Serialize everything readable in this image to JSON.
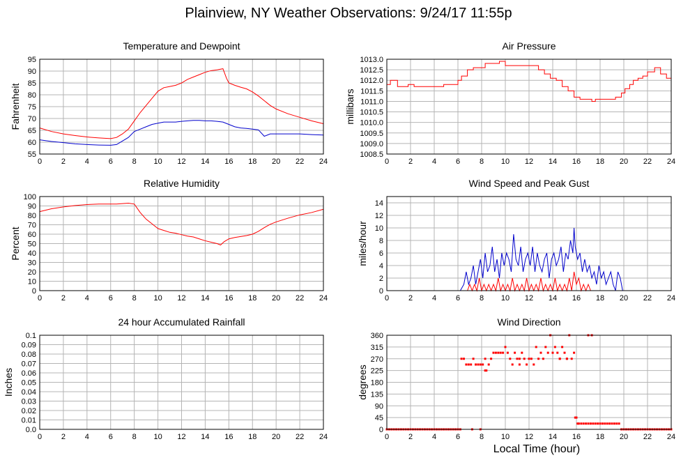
{
  "page": {
    "title": "Plainview, NY Weather Observations: 9/24/17 11:55p",
    "x_axis_label": "Local Time (hour)"
  },
  "colors": {
    "red": "#ff0000",
    "blue": "#0000cc",
    "grid": "#b4b4b4"
  },
  "chart_data": [
    {
      "id": "temp",
      "type": "line",
      "title": "Temperature and Dewpoint",
      "ylabel": "Fahrenheit",
      "xlim": [
        0,
        24
      ],
      "ylim": [
        55,
        95
      ],
      "yticks": [
        "55",
        "60",
        "65",
        "70",
        "75",
        "80",
        "85",
        "90",
        "95"
      ],
      "xticks": [
        "0",
        "2",
        "4",
        "6",
        "8",
        "10",
        "12",
        "14",
        "16",
        "18",
        "20",
        "22",
        "24"
      ],
      "grid": true,
      "series": [
        {
          "color": "red",
          "x": [
            0,
            1,
            2,
            3,
            4,
            5,
            6,
            6.5,
            7,
            7.5,
            8,
            8.5,
            9,
            9.5,
            10,
            10.5,
            11,
            11.5,
            12,
            12.5,
            13,
            13.5,
            14,
            14.5,
            15,
            15.5,
            15.8,
            16,
            16.5,
            17,
            17.5,
            18,
            18.5,
            19,
            19.5,
            20,
            21,
            22,
            23,
            24
          ],
          "y": [
            66,
            64.5,
            63.5,
            62.8,
            62.2,
            61.8,
            61.5,
            62,
            63.5,
            65.5,
            69,
            72.5,
            75.5,
            78.5,
            81.5,
            83,
            83.5,
            84,
            85,
            86.5,
            87.5,
            88.5,
            89.5,
            90.2,
            90.5,
            91,
            87,
            85,
            84,
            83.2,
            82.5,
            81.2,
            79.5,
            77.5,
            75.5,
            74,
            72,
            70.5,
            69,
            67.8
          ]
        },
        {
          "color": "blue",
          "x": [
            0,
            1,
            2,
            3,
            4,
            5,
            6,
            6.5,
            7,
            7.5,
            8,
            8.5,
            9,
            9.5,
            10,
            10.5,
            11,
            11.5,
            12,
            12.5,
            13,
            13.5,
            14,
            14.5,
            15,
            15.5,
            16,
            16.5,
            17,
            17.5,
            18,
            18.5,
            19,
            19.5,
            20,
            21,
            22,
            23,
            24
          ],
          "y": [
            61,
            60.3,
            59.8,
            59.3,
            59,
            58.8,
            58.7,
            59,
            60.5,
            62,
            64.5,
            65.5,
            66.5,
            67.5,
            68,
            68.5,
            68.5,
            68.5,
            68.8,
            69,
            69.2,
            69.2,
            69,
            69,
            68.8,
            68.5,
            67.5,
            66.5,
            66,
            65.8,
            65.5,
            65.2,
            62.5,
            63.5,
            63.5,
            63.5,
            63.5,
            63.2,
            63
          ]
        }
      ]
    },
    {
      "id": "pressure",
      "type": "line",
      "title": "Air Pressure",
      "ylabel": "millibars",
      "xlim": [
        0,
        24
      ],
      "ylim": [
        1008.5,
        1013.0
      ],
      "yticks": [
        "1008.5",
        "1009.0",
        "1009.5",
        "1010.0",
        "1010.5",
        "1011.0",
        "1011.5",
        "1012.0",
        "1012.5",
        "1013.0"
      ],
      "xticks": [
        "0",
        "2",
        "4",
        "6",
        "8",
        "10",
        "12",
        "14",
        "16",
        "18",
        "20",
        "22",
        "24"
      ],
      "grid": true,
      "step": true,
      "series": [
        {
          "color": "red",
          "x": [
            0,
            0.3,
            0.9,
            1.8,
            2.3,
            3.5,
            4.8,
            5.3,
            6.0,
            6.3,
            6.8,
            7.3,
            8.3,
            9.5,
            10.0,
            12.5,
            12.8,
            13.3,
            13.8,
            14.3,
            14.8,
            15.3,
            15.8,
            16.3,
            17.3,
            17.6,
            18.0,
            19.3,
            19.8,
            20.1,
            20.5,
            20.8,
            21.2,
            21.6,
            22.0,
            22.6,
            23.1,
            23.6,
            24
          ],
          "y": [
            1011.8,
            1012.0,
            1011.7,
            1011.8,
            1011.7,
            1011.7,
            1011.8,
            1011.8,
            1012.0,
            1012.2,
            1012.5,
            1012.6,
            1012.8,
            1012.9,
            1012.7,
            1012.7,
            1012.5,
            1012.3,
            1012.1,
            1012.0,
            1011.7,
            1011.5,
            1011.2,
            1011.1,
            1011.0,
            1011.1,
            1011.1,
            1011.2,
            1011.4,
            1011.6,
            1011.8,
            1012.0,
            1012.1,
            1012.2,
            1012.4,
            1012.6,
            1012.3,
            1012.1,
            1012.0
          ]
        }
      ]
    },
    {
      "id": "humidity",
      "type": "line",
      "title": "Relative Humidity",
      "ylabel": "Percent",
      "xlim": [
        0,
        24
      ],
      "ylim": [
        0,
        100
      ],
      "yticks": [
        "0",
        "10",
        "20",
        "30",
        "40",
        "50",
        "60",
        "70",
        "80",
        "90",
        "100"
      ],
      "xticks": [
        "0",
        "2",
        "4",
        "6",
        "8",
        "10",
        "12",
        "14",
        "16",
        "18",
        "20",
        "22",
        "24"
      ],
      "grid": true,
      "series": [
        {
          "color": "red",
          "x": [
            0,
            1,
            2,
            3,
            4,
            5,
            6,
            6.5,
            7,
            7.5,
            8,
            8.5,
            9,
            9.5,
            10,
            10.5,
            11,
            11.5,
            12,
            12.5,
            13,
            13.5,
            14,
            14.5,
            15,
            15.3,
            15.6,
            16,
            16.5,
            17,
            17.5,
            18,
            18.5,
            19,
            19.5,
            20,
            21,
            22,
            23,
            24
          ],
          "y": [
            84,
            87,
            89,
            90.5,
            91.5,
            92,
            92,
            92,
            92.5,
            93,
            92,
            83,
            76,
            71,
            66,
            64,
            62,
            61,
            59.5,
            58,
            57,
            55,
            53,
            51.5,
            50,
            48.5,
            52,
            55,
            56.5,
            57.5,
            58.5,
            60,
            63,
            67,
            70.5,
            73,
            77,
            80.5,
            83,
            86.5
          ]
        }
      ]
    },
    {
      "id": "wind",
      "type": "line",
      "title": "Wind Speed and Peak Gust",
      "ylabel": "miles/hour",
      "xlim": [
        0,
        24
      ],
      "ylim": [
        0,
        15
      ],
      "yticks": [
        "0",
        "2",
        "4",
        "6",
        "8",
        "10",
        "12",
        "14"
      ],
      "xticks": [
        "0",
        "2",
        "4",
        "6",
        "8",
        "10",
        "12",
        "14",
        "16",
        "18",
        "20",
        "22",
        "24"
      ],
      "grid": true,
      "series": [
        {
          "color": "blue",
          "x": [
            0,
            6.2,
            6.5,
            6.7,
            6.9,
            7.1,
            7.3,
            7.5,
            7.7,
            7.9,
            8.1,
            8.3,
            8.5,
            8.7,
            8.9,
            9.1,
            9.3,
            9.5,
            9.7,
            9.9,
            10.1,
            10.3,
            10.5,
            10.7,
            10.9,
            11.1,
            11.3,
            11.5,
            11.7,
            11.9,
            12.1,
            12.3,
            12.5,
            12.7,
            12.9,
            13.1,
            13.3,
            13.5,
            13.7,
            13.9,
            14.1,
            14.3,
            14.5,
            14.7,
            14.9,
            15.1,
            15.3,
            15.5,
            15.7,
            15.8,
            15.9,
            16.1,
            16.3,
            16.5,
            16.7,
            16.9,
            17.1,
            17.3,
            17.5,
            17.7,
            17.9,
            18.1,
            18.3,
            18.5,
            18.7,
            18.9,
            19.1,
            19.3,
            19.5,
            19.7,
            19.9,
            20.0,
            24
          ],
          "y": [
            0,
            0,
            1,
            3,
            1,
            2,
            4,
            1,
            3,
            5,
            2,
            6,
            3,
            4,
            7,
            3,
            5,
            2,
            6,
            4,
            6,
            5,
            3,
            9,
            5,
            4,
            7,
            3,
            5,
            6,
            4,
            7,
            3,
            6,
            4,
            3,
            5,
            6,
            2,
            5,
            6,
            4,
            5,
            7,
            3,
            6,
            5,
            8,
            6,
            10,
            7,
            5,
            6,
            3,
            5,
            3,
            4,
            2,
            3,
            1,
            4,
            2,
            3,
            1,
            2,
            3,
            1,
            0,
            3,
            2,
            0,
            0,
            0
          ]
        },
        {
          "color": "red",
          "x": [
            0,
            6.8,
            7.0,
            7.2,
            7.4,
            7.6,
            7.8,
            8.0,
            8.2,
            8.4,
            8.6,
            8.8,
            9.0,
            9.2,
            9.4,
            9.6,
            9.8,
            10.0,
            10.2,
            10.4,
            10.6,
            10.8,
            11.0,
            11.2,
            11.4,
            11.6,
            11.8,
            12.0,
            12.2,
            12.4,
            12.6,
            12.8,
            13.0,
            13.2,
            13.4,
            13.6,
            13.8,
            14.0,
            14.2,
            14.4,
            14.6,
            14.8,
            15.0,
            15.2,
            15.4,
            15.6,
            15.8,
            16.0,
            16.2,
            16.4,
            16.6,
            16.8,
            17.0,
            17.2,
            17.4,
            24
          ],
          "y": [
            0,
            0,
            1,
            0,
            1,
            0,
            2,
            0,
            1,
            0,
            1,
            0,
            1,
            0,
            2,
            0,
            1,
            0,
            1,
            0,
            2,
            0,
            1,
            0,
            1,
            0,
            2,
            0,
            1,
            0,
            1,
            0,
            2,
            0,
            1,
            0,
            1,
            0,
            2,
            0,
            1,
            0,
            1,
            0,
            2,
            0,
            3,
            1,
            2,
            0,
            1,
            0,
            1,
            0,
            0,
            0
          ]
        }
      ]
    },
    {
      "id": "rain",
      "type": "line",
      "title": "24 hour Accumulated Rainfall",
      "ylabel": "Inches",
      "xlim": [
        0,
        24
      ],
      "ylim": [
        0,
        0.1
      ],
      "yticks": [
        "0.0",
        "0.01",
        "0.02",
        "0.03",
        "0.04",
        "0.05",
        "0.06",
        "0.07",
        "0.08",
        "0.09",
        "0.1"
      ],
      "xticks": [
        "0",
        "2",
        "4",
        "6",
        "8",
        "10",
        "12",
        "14",
        "16",
        "18",
        "20",
        "22",
        "24"
      ],
      "grid": true,
      "series": [
        {
          "color": "red",
          "x": [
            0,
            24
          ],
          "y": [
            0,
            0
          ]
        }
      ]
    },
    {
      "id": "winddir",
      "type": "scatter",
      "title": "Wind Direction",
      "ylabel": "degrees",
      "xlim": [
        0,
        24
      ],
      "ylim": [
        0,
        360
      ],
      "yticks": [
        "0",
        "45",
        "90",
        "135",
        "180",
        "225",
        "270",
        "315",
        "360"
      ],
      "xticks": [
        "0",
        "2",
        "4",
        "6",
        "8",
        "10",
        "12",
        "14",
        "16",
        "18",
        "20",
        "22",
        "24"
      ],
      "grid": true,
      "series": [
        {
          "color": "red",
          "x": [
            6.3,
            6.5,
            6.7,
            6.9,
            7.1,
            7.3,
            7.5,
            7.7,
            7.9,
            8.1,
            8.3,
            8.4,
            8.6,
            8.8,
            9.0,
            9.2,
            9.4,
            9.6,
            9.8,
            10.0,
            10.2,
            10.4,
            10.6,
            10.8,
            11.0,
            11.2,
            11.4,
            11.6,
            11.8,
            12.0,
            12.2,
            12.4,
            12.6,
            12.8,
            13.0,
            13.2,
            13.4,
            13.6,
            13.8,
            14.0,
            14.2,
            14.4,
            14.6,
            14.8,
            15.0,
            15.2,
            15.4,
            15.6,
            15.8,
            16.0,
            16.2,
            16.4,
            16.6,
            16.8,
            17.0,
            17.2,
            17.4,
            17.6,
            17.8,
            18.0,
            18.2,
            18.4,
            18.6,
            18.8,
            19.0,
            19.2,
            19.4,
            19.6,
            7.2,
            7.9,
            8.3,
            11.2,
            13.8,
            14.6,
            15.2,
            17.0,
            17.3,
            15.9,
            16.1
          ],
          "y": [
            270,
            270,
            248,
            248,
            248,
            270,
            248,
            248,
            248,
            248,
            225,
            225,
            248,
            270,
            293,
            293,
            293,
            293,
            293,
            315,
            293,
            270,
            248,
            293,
            270,
            248,
            293,
            270,
            248,
            270,
            270,
            248,
            315,
            270,
            293,
            270,
            315,
            293,
            360,
            293,
            315,
            293,
            270,
            315,
            293,
            270,
            360,
            270,
            293,
            45,
            22,
            22,
            22,
            22,
            22,
            22,
            22,
            22,
            22,
            22,
            22,
            22,
            22,
            22,
            22,
            22,
            22,
            22,
            0,
            0,
            270,
            270,
            360,
            270,
            270,
            360,
            360,
            45,
            22
          ]
        },
        {
          "color": "red",
          "x": [
            0,
            0.2,
            0.4,
            0.6,
            0.8,
            1,
            1.2,
            1.4,
            1.6,
            1.8,
            2,
            2.2,
            2.4,
            2.6,
            2.8,
            3,
            3.2,
            3.4,
            3.6,
            3.8,
            4,
            4.2,
            4.4,
            4.6,
            4.8,
            5,
            5.2,
            5.4,
            5.6,
            5.8,
            6,
            6.2,
            19.8,
            20,
            20.2,
            20.4,
            20.6,
            20.8,
            21,
            21.2,
            21.4,
            21.6,
            21.8,
            22,
            22.2,
            22.4,
            22.6,
            22.8,
            23,
            23.2,
            23.4,
            23.6,
            23.8,
            24
          ],
          "y": [
            0,
            0,
            0,
            0,
            0,
            0,
            0,
            0,
            0,
            0,
            0,
            0,
            0,
            0,
            0,
            0,
            0,
            0,
            0,
            0,
            0,
            0,
            0,
            0,
            0,
            0,
            0,
            0,
            0,
            0,
            0,
            0,
            0,
            0,
            0,
            0,
            0,
            0,
            0,
            0,
            0,
            0,
            0,
            0,
            0,
            0,
            0,
            0,
            0,
            0,
            0,
            0,
            0,
            0
          ]
        }
      ]
    }
  ]
}
